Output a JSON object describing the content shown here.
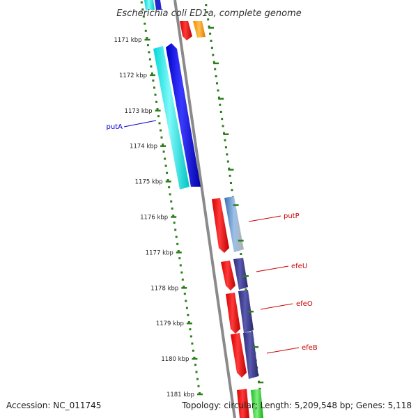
{
  "title": "Escherichia coli ED1a, complete genome",
  "footer": {
    "accession": "Accession: NC_011745",
    "topology": "Topology: circular; Length: 5,209,548 bp; Genes: 5,118"
  },
  "ticks": [
    "1171 kbp",
    "1172 kbp",
    "1173 kbp",
    "1174 kbp",
    "1175 kbp",
    "1176 kbp",
    "1177 kbp",
    "1178 kbp",
    "1179 kbp",
    "1180 kbp",
    "1181 kbp"
  ],
  "genes": [
    {
      "label": "putA",
      "color": "#0000cc"
    },
    {
      "label": "putP",
      "color": "#cc0000"
    },
    {
      "label": "efeU",
      "color": "#cc0000"
    },
    {
      "label": "efeO",
      "color": "#cc0000"
    },
    {
      "label": "efeB",
      "color": "#cc0000"
    }
  ],
  "colors": {
    "tick": "#2e7d1e",
    "backbone": "#888888",
    "cyan": "#00e5e5",
    "blue": "#0000e0",
    "red": "#ee0000",
    "purple": "#3a3a8c",
    "steel": "#4a7fbf",
    "orange": "#ff9900",
    "green": "#22cc22"
  }
}
